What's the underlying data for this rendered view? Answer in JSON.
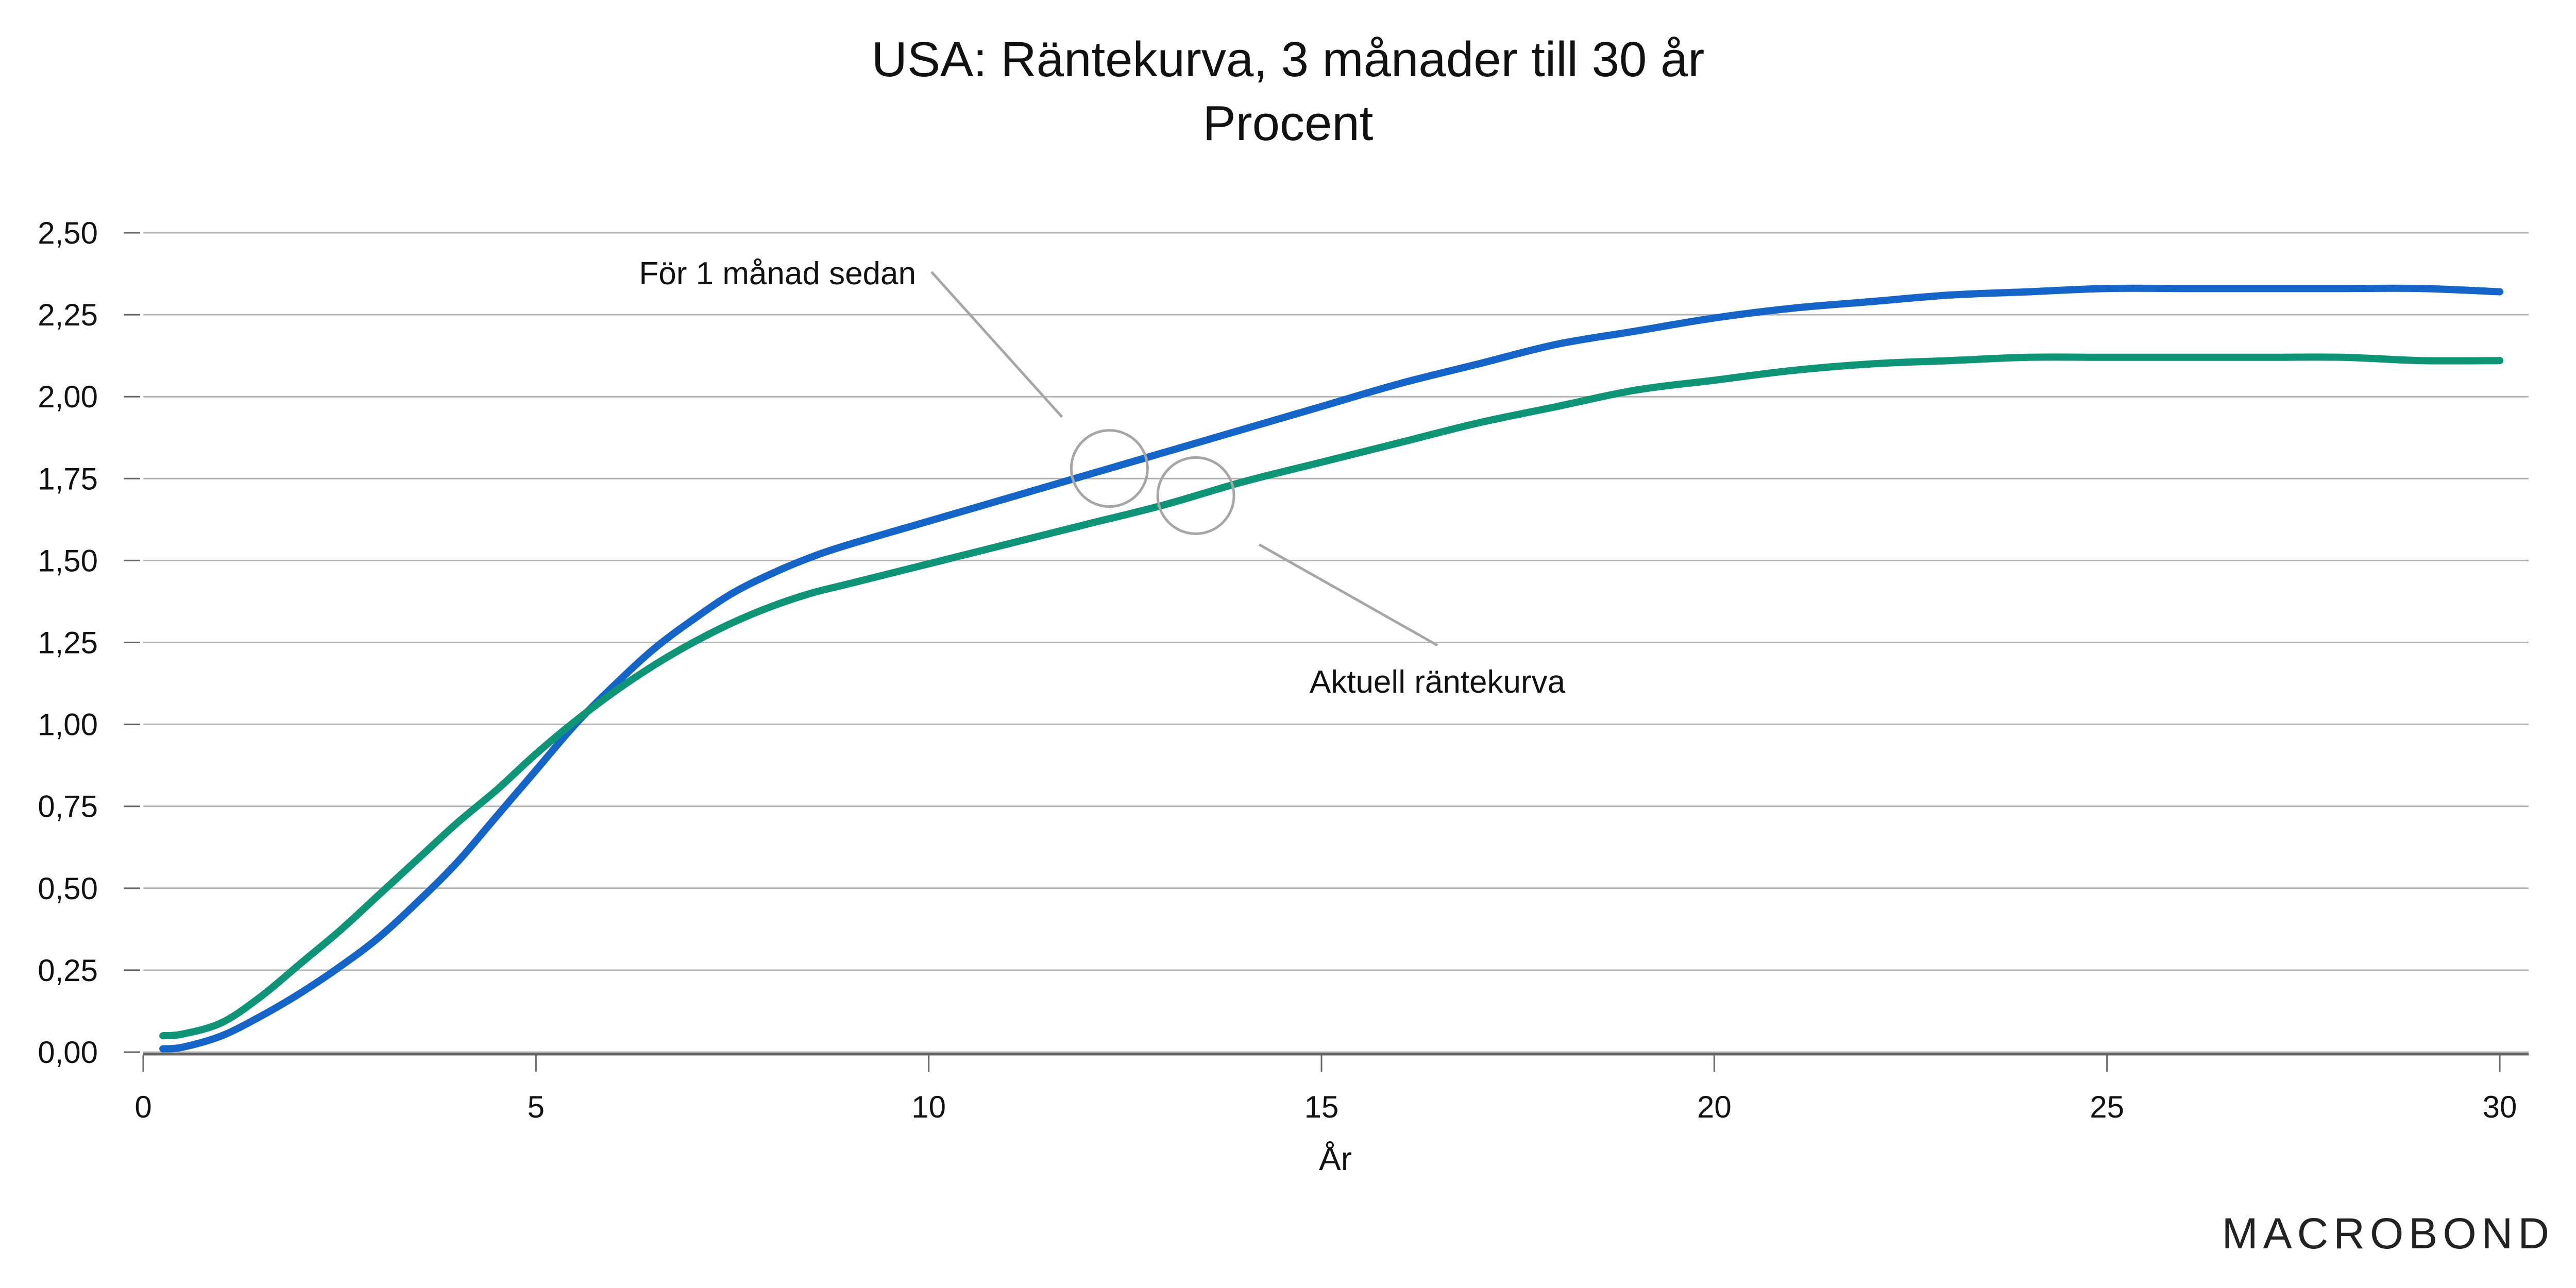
{
  "chart_data": {
    "type": "line",
    "title": "USA: Räntekurva, 3 månader till 30 år",
    "subtitle": "Procent",
    "xlabel": "År",
    "ylabel": "",
    "xlim": [
      0,
      30
    ],
    "ylim": [
      0,
      2.5
    ],
    "x_ticks": [
      "0",
      "5",
      "10",
      "15",
      "20",
      "25",
      "30"
    ],
    "y_ticks": [
      "0,00",
      "0,25",
      "0,50",
      "0,75",
      "1,00",
      "1,25",
      "1,50",
      "1,75",
      "2,00",
      "2,25",
      "2,50"
    ],
    "grid": true,
    "series": [
      {
        "name": "För 1 månad sedan",
        "color": "#1565c8",
        "x": [
          0.25,
          0.5,
          1,
          1.5,
          2,
          2.5,
          3,
          3.5,
          4,
          4.5,
          5,
          5.5,
          6,
          6.5,
          7,
          7.5,
          8,
          8.5,
          9,
          10,
          11,
          12,
          13,
          14,
          15,
          16,
          17,
          18,
          19,
          20,
          21,
          22,
          23,
          24,
          25,
          26,
          27,
          28,
          29,
          30
        ],
        "y": [
          0.01,
          0.015,
          0.05,
          0.11,
          0.18,
          0.26,
          0.35,
          0.46,
          0.58,
          0.72,
          0.86,
          1.0,
          1.12,
          1.23,
          1.32,
          1.4,
          1.46,
          1.51,
          1.55,
          1.62,
          1.69,
          1.76,
          1.83,
          1.9,
          1.97,
          2.04,
          2.1,
          2.16,
          2.2,
          2.24,
          2.27,
          2.29,
          2.31,
          2.32,
          2.33,
          2.33,
          2.33,
          2.33,
          2.33,
          2.32
        ]
      },
      {
        "name": "Aktuell räntekurva",
        "color": "#0e9477",
        "x": [
          0.25,
          0.5,
          1,
          1.5,
          2,
          2.5,
          3,
          3.5,
          4,
          4.5,
          5,
          5.5,
          6,
          6.5,
          7,
          7.5,
          8,
          8.5,
          9,
          10,
          11,
          12,
          13,
          14,
          15,
          16,
          17,
          18,
          19,
          20,
          21,
          22,
          23,
          24,
          25,
          26,
          27,
          28,
          29,
          30
        ],
        "y": [
          0.05,
          0.055,
          0.09,
          0.17,
          0.27,
          0.37,
          0.48,
          0.59,
          0.7,
          0.8,
          0.91,
          1.01,
          1.1,
          1.18,
          1.25,
          1.31,
          1.36,
          1.4,
          1.43,
          1.49,
          1.55,
          1.61,
          1.67,
          1.74,
          1.8,
          1.86,
          1.92,
          1.97,
          2.02,
          2.05,
          2.08,
          2.1,
          2.11,
          2.12,
          2.12,
          2.12,
          2.12,
          2.12,
          2.11,
          2.11
        ]
      }
    ],
    "annotations": [
      {
        "text": "För 1 månad sedan",
        "series": 0,
        "at_x": 12.3
      },
      {
        "text": "Aktuell räntekurva",
        "series": 1,
        "at_x": 13.4
      }
    ]
  },
  "brand": {
    "text": "MACROBOND"
  },
  "colors": {
    "grid": "#b3b3b3",
    "axis": "#666666",
    "leader": "#a6a6a6"
  }
}
